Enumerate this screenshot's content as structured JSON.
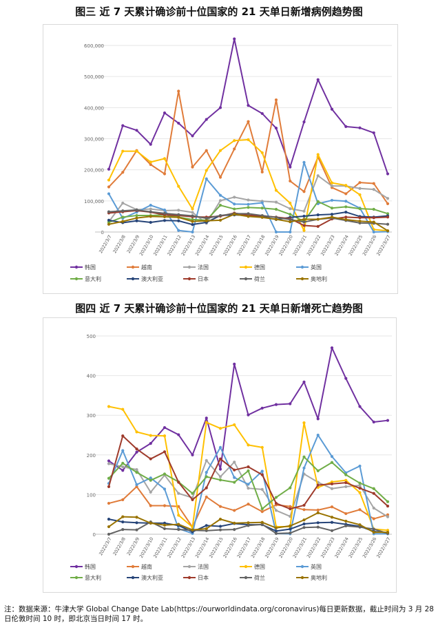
{
  "page": {
    "title1": "图三 近 7 天累计确诊前十位国家的 21 天单日新增病例趋势图",
    "title2": "图四 近 7 天累计确诊前十位国家的 21 天单日新增死亡趋势图",
    "footnote": "注：数据来源：牛津大学 Global Change Date Lab(https://ourworldindata.org/coronavirus)每日更新数据，截止时间为 3 月 28 日伦敦时间 10 时，即北京当日时间 17 时。"
  },
  "chart_data": [
    {
      "type": "line",
      "categories": [
        "2022/3/7",
        "2022/3/8",
        "2022/3/9",
        "2022/3/10",
        "2022/3/11",
        "2022/3/12",
        "2022/3/13",
        "2022/3/14",
        "2022/3/15",
        "2022/3/16",
        "2022/3/17",
        "2022/3/18",
        "2022/3/19",
        "2022/3/20",
        "2022/3/21",
        "2022/3/22",
        "2022/3/23",
        "2022/3/24",
        "2022/3/25",
        "2022/3/26",
        "2022/3/27"
      ],
      "yticks": [
        "0",
        "100,000",
        "200,000",
        "300,000",
        "400,000",
        "500,000",
        "600,000"
      ],
      "ylim": [
        0,
        600000
      ],
      "legend_position": "bottom",
      "series": [
        {
          "name": "韩国",
          "color": "#7030a0",
          "values": [
            202000,
            342000,
            327000,
            282000,
            383000,
            350000,
            309000,
            362000,
            400000,
            621000,
            407000,
            381000,
            334000,
            209000,
            354000,
            490000,
            395000,
            339000,
            335000,
            319000,
            187000
          ]
        },
        {
          "name": "越南",
          "color": "#e07b39",
          "values": [
            145000,
            192000,
            262000,
            217000,
            187000,
            453000,
            209000,
            262000,
            176000,
            267000,
            355000,
            193000,
            425000,
            164000,
            130000,
            241000,
            143000,
            123000,
            159000,
            156000,
            91000
          ]
        },
        {
          "name": "法国",
          "color": "#a5a5a5",
          "values": [
            33000,
            93000,
            72000,
            74000,
            69000,
            70000,
            63000,
            28000,
            101000,
            112000,
            103000,
            99000,
            96000,
            75000,
            67000,
            181000,
            148000,
            148000,
            140000,
            137000,
            108000
          ]
        },
        {
          "name": "德国",
          "color": "#ffc000",
          "values": [
            167000,
            260000,
            260000,
            225000,
            236000,
            147000,
            74000,
            198000,
            262000,
            294000,
            297000,
            255000,
            134000,
            93000,
            5000,
            249000,
            158000,
            150000,
            120000,
            8000,
            4000
          ]
        },
        {
          "name": "英国",
          "color": "#5b9bd5",
          "values": [
            123000,
            44000,
            64000,
            86000,
            71000,
            5000,
            0,
            171000,
            118000,
            90000,
            89000,
            94000,
            0,
            0,
            224000,
            91000,
            102000,
            99000,
            77000,
            0,
            1000
          ]
        },
        {
          "name": "意大利",
          "color": "#70ad47",
          "values": [
            31000,
            48000,
            53000,
            53000,
            55000,
            48000,
            40000,
            38000,
            86000,
            74000,
            79000,
            77000,
            73000,
            57000,
            34000,
            98000,
            77000,
            81000,
            75000,
            73000,
            59000
          ]
        },
        {
          "name": "澳大利亚",
          "color": "#264478",
          "values": [
            38000,
            30000,
            36000,
            31000,
            37000,
            36000,
            24000,
            31000,
            53000,
            55000,
            53000,
            50000,
            40000,
            47000,
            51000,
            55000,
            57000,
            64000,
            50000,
            48000,
            52000
          ]
        },
        {
          "name": "日本",
          "color": "#9e3a2b",
          "values": [
            61000,
            65000,
            69000,
            64000,
            55000,
            53000,
            49000,
            48000,
            51000,
            61000,
            54000,
            52000,
            48000,
            43000,
            21000,
            18000,
            42000,
            48000,
            46000,
            46000,
            48000
          ]
        },
        {
          "name": "荷兰",
          "color": "#636363",
          "values": [
            65000,
            68000,
            71000,
            65000,
            60000,
            56000,
            52000,
            44000,
            53000,
            59000,
            59000,
            53000,
            47000,
            40000,
            32000,
            41000,
            45000,
            37000,
            29000,
            28000,
            25000
          ]
        },
        {
          "name": "奥地利",
          "color": "#997300",
          "values": [
            25000,
            34000,
            45000,
            50000,
            49000,
            47000,
            34000,
            36000,
            38000,
            57000,
            50000,
            47000,
            41000,
            33000,
            41000,
            41000,
            48000,
            40000,
            35000,
            32000,
            4000
          ]
        }
      ]
    },
    {
      "type": "line",
      "categories": [
        "2022/3/7",
        "2022/3/8",
        "2022/3/9",
        "2022/3/10",
        "2022/3/11",
        "2022/3/12",
        "2022/3/13",
        "2022/3/14",
        "2022/3/15",
        "2022/3/16",
        "2022/3/17",
        "2022/3/18",
        "2022/3/19",
        "2022/3/20",
        "2022/3/21",
        "2022/3/22",
        "2022/3/23",
        "2022/3/24",
        "2022/3/25",
        "2022/3/26",
        "2022/3/27"
      ],
      "yticks": [
        "0",
        "100",
        "200",
        "300",
        "400",
        "500"
      ],
      "ylim": [
        0,
        500
      ],
      "legend_position": "bottom",
      "series": [
        {
          "name": "韩国",
          "color": "#7030a0",
          "values": [
            185,
            161,
            207,
            229,
            269,
            251,
            200,
            293,
            164,
            429,
            301,
            318,
            327,
            329,
            384,
            291,
            470,
            393,
            322,
            283,
            287
          ]
        },
        {
          "name": "越南",
          "color": "#e07b39",
          "values": [
            78,
            87,
            120,
            72,
            72,
            70,
            18,
            94,
            70,
            60,
            76,
            57,
            74,
            70,
            62,
            61,
            69,
            52,
            62,
            39,
            49
          ]
        },
        {
          "name": "法国",
          "color": "#a5a5a5",
          "values": [
            178,
            170,
            163,
            106,
            149,
            103,
            92,
            186,
            145,
            182,
            116,
            113,
            60,
            45,
            152,
            131,
            115,
            120,
            123,
            66,
            44
          ]
        },
        {
          "name": "德国",
          "color": "#ffc000",
          "values": [
            322,
            315,
            258,
            249,
            248,
            48,
            18,
            282,
            267,
            276,
            225,
            219,
            19,
            19,
            281,
            118,
            132,
            136,
            105,
            13,
            10
          ]
        },
        {
          "name": "英国",
          "color": "#5b9bd5",
          "values": [
            128,
            211,
            125,
            142,
            114,
            14,
            2,
            156,
            219,
            143,
            126,
            159,
            2,
            1,
            167,
            250,
            196,
            155,
            172,
            1,
            1
          ]
        },
        {
          "name": "意大利",
          "color": "#70ad47",
          "values": [
            141,
            179,
            156,
            136,
            152,
            132,
            103,
            145,
            137,
            131,
            160,
            64,
            93,
            117,
            195,
            160,
            181,
            150,
            129,
            115,
            82
          ]
        },
        {
          "name": "澳大利亚",
          "color": "#264478",
          "values": [
            38,
            31,
            29,
            28,
            28,
            22,
            6,
            22,
            20,
            27,
            24,
            24,
            8,
            13,
            26,
            29,
            30,
            25,
            20,
            7,
            4
          ]
        },
        {
          "name": "日本",
          "color": "#9e3a2b",
          "values": [
            120,
            248,
            215,
            190,
            208,
            131,
            87,
            117,
            190,
            162,
            170,
            150,
            78,
            64,
            73,
            124,
            127,
            130,
            116,
            103,
            71
          ]
        },
        {
          "name": "荷兰",
          "color": "#636363",
          "values": [
            0,
            12,
            11,
            31,
            14,
            12,
            10,
            9,
            11,
            12,
            22,
            25,
            2,
            3,
            17,
            18,
            9,
            21,
            18,
            13,
            2
          ]
        },
        {
          "name": "奥地利",
          "color": "#997300",
          "values": [
            19,
            44,
            43,
            28,
            23,
            25,
            11,
            14,
            38,
            28,
            29,
            30,
            16,
            21,
            36,
            54,
            43,
            33,
            24,
            5,
            5
          ]
        }
      ]
    }
  ]
}
